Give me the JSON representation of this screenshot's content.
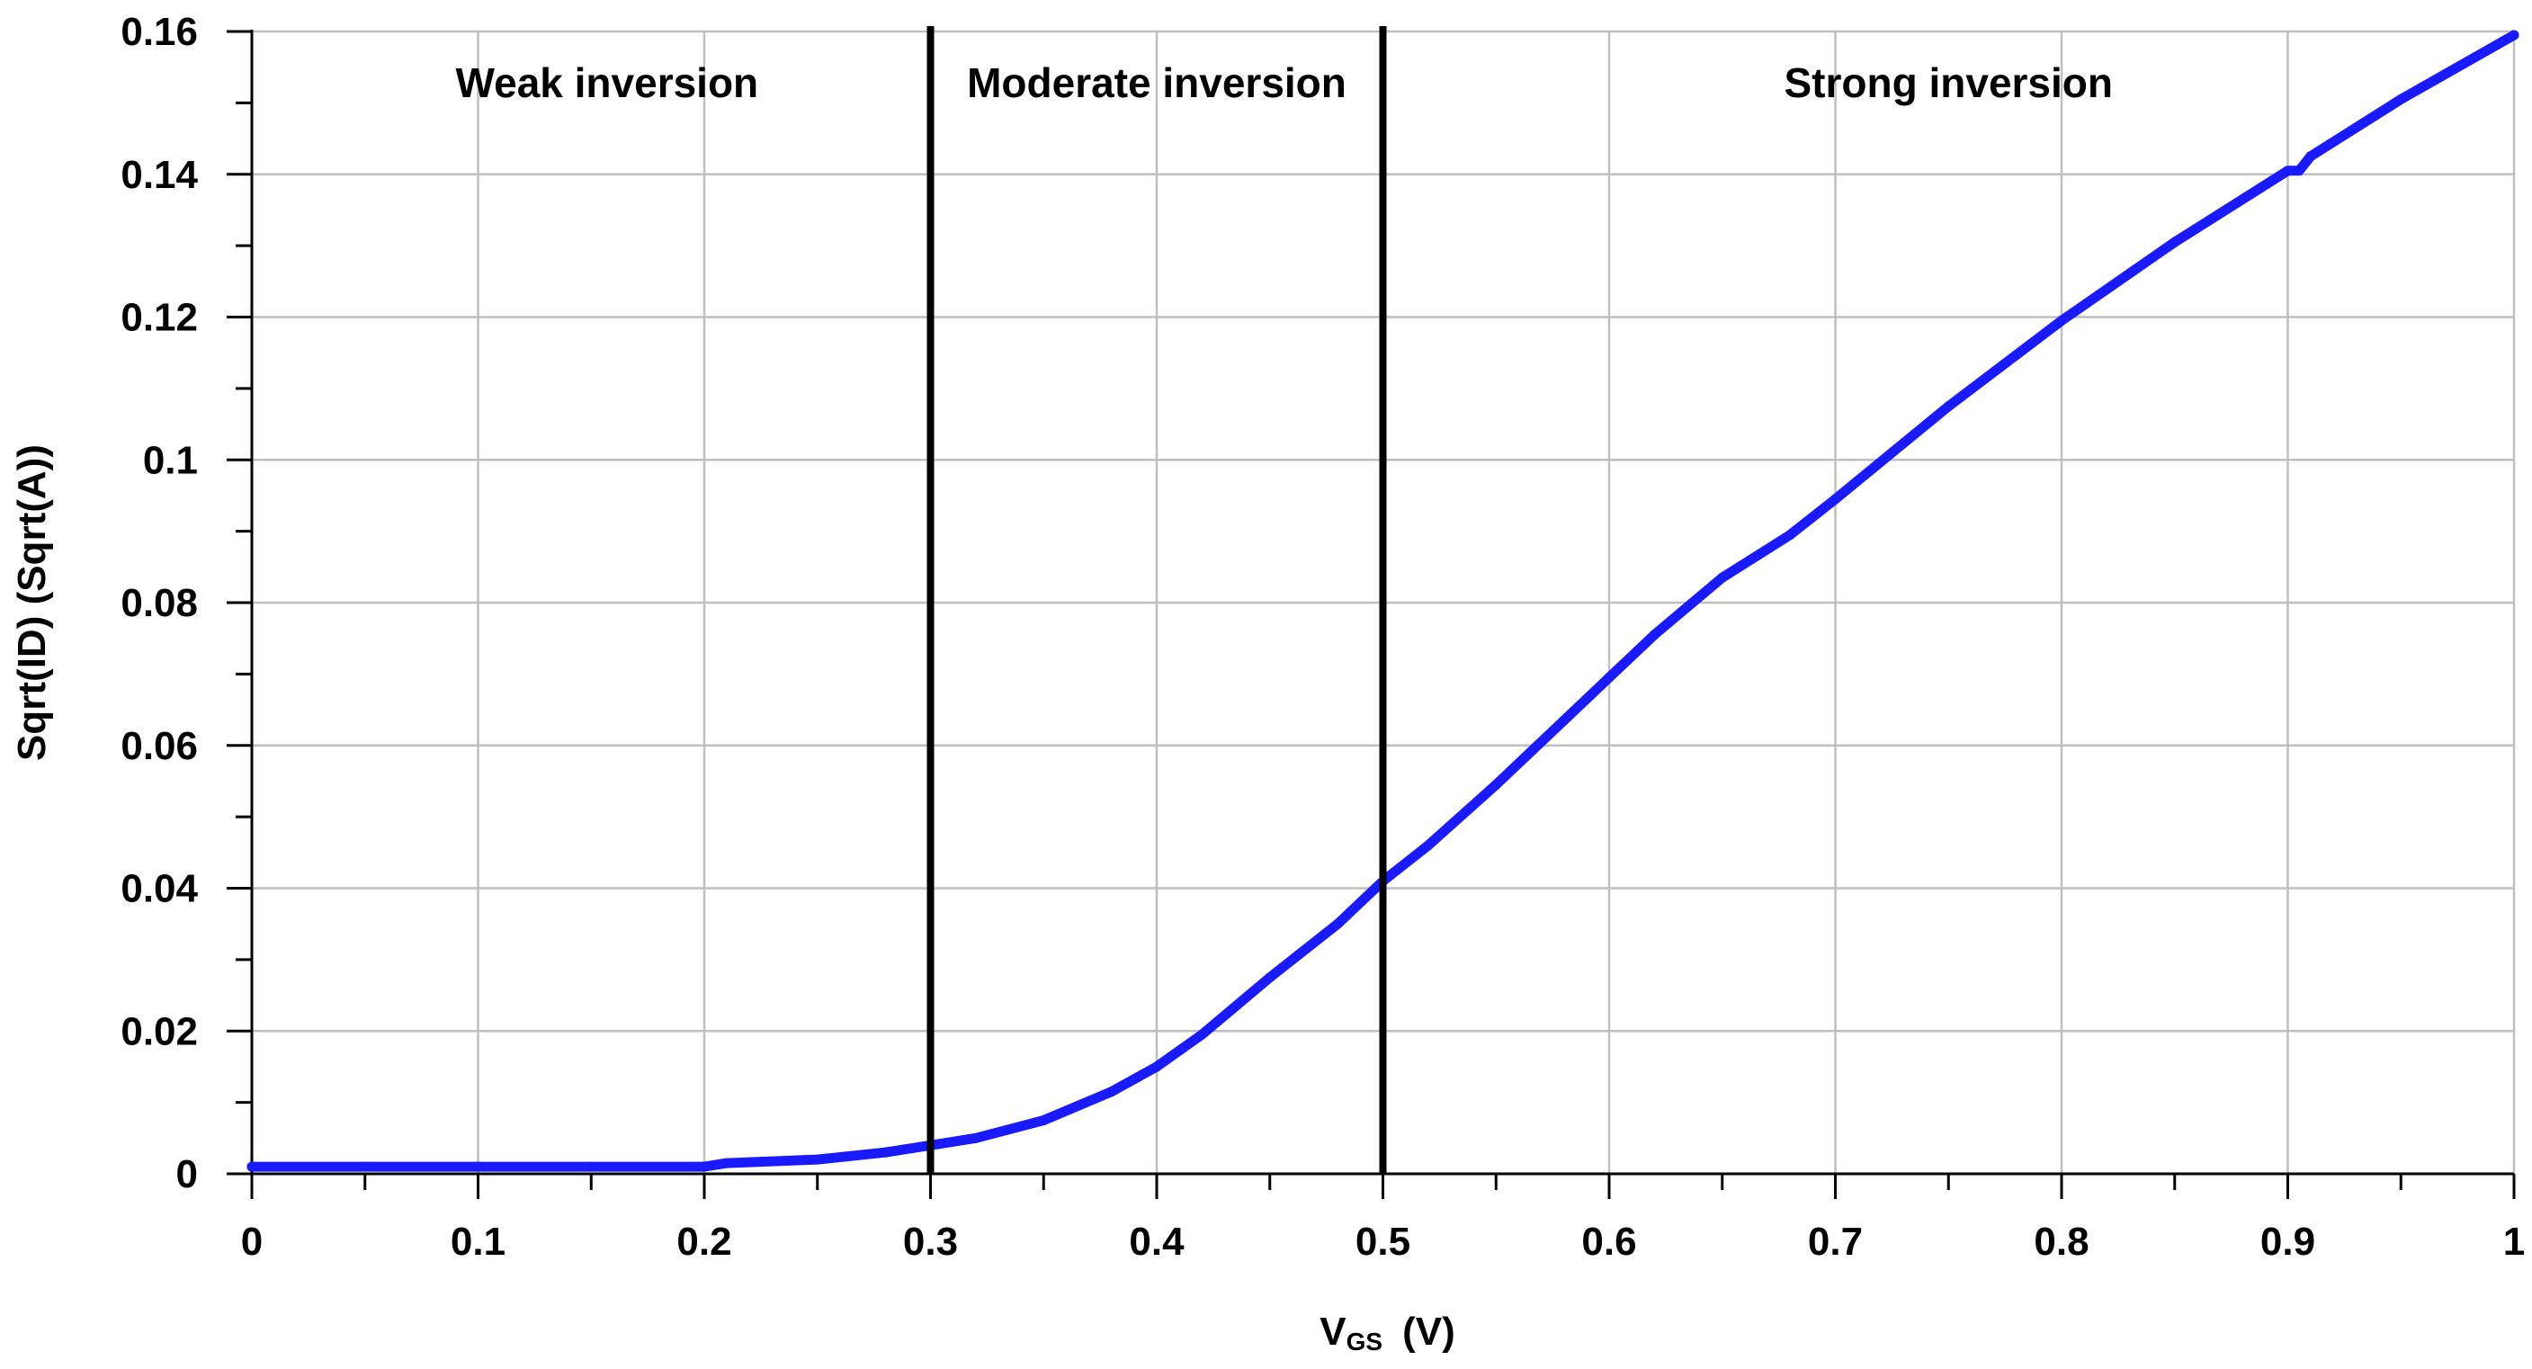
{
  "chart_data": {
    "type": "line",
    "title": "",
    "xlabel_main": "V",
    "xlabel_sub": "GS",
    "xlabel_unit": "(V)",
    "ylabel": "Sqrt(ID) (Sqrt(A))",
    "xlim": [
      0,
      1
    ],
    "ylim": [
      0,
      0.16
    ],
    "grid": true,
    "x_ticks": [
      0,
      0.1,
      0.2,
      0.3,
      0.4,
      0.5,
      0.6,
      0.7,
      0.8,
      0.9,
      1
    ],
    "x_tick_labels": [
      "0",
      "0.1",
      "0.2",
      "0.3",
      "0.4",
      "0.5",
      "0.6",
      "0.7",
      "0.8",
      "0.9",
      "1"
    ],
    "y_ticks": [
      0,
      0.02,
      0.04,
      0.06,
      0.08,
      0.1,
      0.12,
      0.14,
      0.16
    ],
    "y_tick_labels": [
      "0",
      "0.02",
      "0.04",
      "0.06",
      "0.08",
      "0.1",
      "0.12",
      "0.14",
      "0.16"
    ],
    "series": [
      {
        "name": "Sqrt(ID)",
        "color": "#1a1aff",
        "x": [
          0,
          0.05,
          0.1,
          0.15,
          0.2,
          0.21,
          0.25,
          0.28,
          0.3,
          0.32,
          0.35,
          0.38,
          0.4,
          0.42,
          0.45,
          0.48,
          0.5,
          0.52,
          0.55,
          0.58,
          0.6,
          0.62,
          0.65,
          0.68,
          0.7,
          0.75,
          0.8,
          0.85,
          0.9,
          0.905,
          0.91,
          0.95,
          1.0
        ],
        "y": [
          0.001,
          0.001,
          0.001,
          0.001,
          0.001,
          0.0015,
          0.002,
          0.003,
          0.004,
          0.005,
          0.0075,
          0.0115,
          0.015,
          0.0195,
          0.0275,
          0.035,
          0.041,
          0.046,
          0.0545,
          0.0635,
          0.0695,
          0.0755,
          0.0835,
          0.0895,
          0.0945,
          0.1075,
          0.1195,
          0.1305,
          0.1405,
          0.1405,
          0.1425,
          0.1505,
          0.1595
        ]
      }
    ],
    "vlines": [
      {
        "name": "boundary-weak-moderate",
        "x": 0.3,
        "color": "#000000"
      },
      {
        "name": "boundary-moderate-strong",
        "x": 0.5,
        "color": "#000000"
      }
    ],
    "regions": [
      {
        "name": "weak",
        "label": "Weak inversion",
        "x_center": 0.157
      },
      {
        "name": "moderate",
        "label": "Moderate inversion",
        "x_center": 0.4
      },
      {
        "name": "strong",
        "label": "Strong inversion",
        "x_center": 0.75
      }
    ],
    "grid_color": "#bfbfbf",
    "axis_color": "#000000"
  }
}
